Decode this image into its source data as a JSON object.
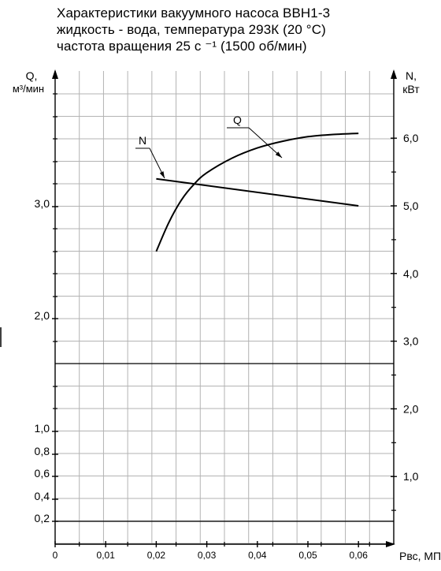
{
  "title_lines": [
    "Характеристики вакуумного насоса ВВН1-3",
    "жидкость - вода, температура 293К (20 °С)",
    "частота вращения 25 с ⁻¹ (1500 об/мин)"
  ],
  "chart_data": {
    "type": "line",
    "xlabel": "Рвс, МПа",
    "ylabel_left": [
      "Q,",
      "м³/мин"
    ],
    "ylabel_right": [
      "N,",
      "кВт"
    ],
    "x_ticks": [
      {
        "value": 0,
        "label": "0"
      },
      {
        "value": 0.01,
        "label": "0,01"
      },
      {
        "value": 0.02,
        "label": "0,02"
      },
      {
        "value": 0.03,
        "label": "0,03"
      },
      {
        "value": 0.04,
        "label": "0,04"
      },
      {
        "value": 0.05,
        "label": "0,05"
      },
      {
        "value": 0.06,
        "label": "0,06"
      }
    ],
    "y_left_ticks": [
      {
        "value": 0.2,
        "label": "0,2"
      },
      {
        "value": 0.4,
        "label": "0,4"
      },
      {
        "value": 0.6,
        "label": "0,6"
      },
      {
        "value": 0.8,
        "label": "0,8"
      },
      {
        "value": 1.0,
        "label": "1,0"
      },
      {
        "value": 2.0,
        "label": "2,0"
      },
      {
        "value": 3.0,
        "label": "3,0"
      }
    ],
    "y_right_ticks": [
      {
        "value": 1.0,
        "label": "1,0"
      },
      {
        "value": 2.0,
        "label": "2,0"
      },
      {
        "value": 3.0,
        "label": "3,0"
      },
      {
        "value": 4.0,
        "label": "4,0"
      },
      {
        "value": 5.0,
        "label": "5,0"
      },
      {
        "value": 6.0,
        "label": "6,0"
      }
    ],
    "grid": true,
    "series": [
      {
        "name": "Q",
        "axis": "left",
        "x": [
          0.02,
          0.0225,
          0.025,
          0.0275,
          0.03,
          0.035,
          0.04,
          0.045,
          0.05,
          0.055,
          0.06
        ],
        "y": [
          2.6,
          2.86,
          3.06,
          3.2,
          3.3,
          3.43,
          3.52,
          3.58,
          3.62,
          3.64,
          3.65
        ]
      },
      {
        "name": "N",
        "axis": "right",
        "x": [
          0.02,
          0.06
        ],
        "y": [
          5.4,
          5.0
        ]
      }
    ]
  }
}
